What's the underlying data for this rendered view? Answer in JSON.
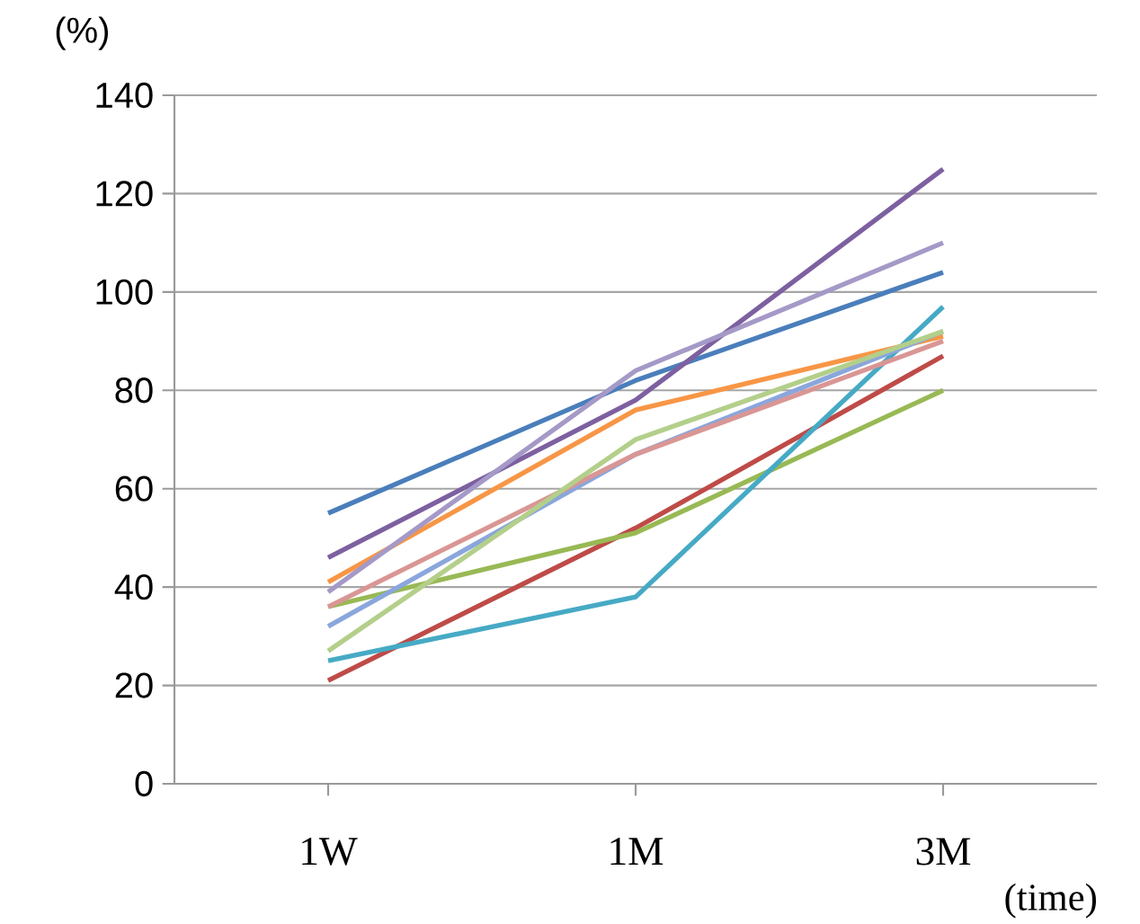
{
  "chart_data": {
    "type": "line",
    "ylabel": "(%)",
    "xlabel": "(time)",
    "categories": [
      "1W",
      "1M",
      "3M"
    ],
    "series": [
      {
        "color": "#4a7ebb",
        "values": [
          55,
          82,
          104
        ]
      },
      {
        "color": "#be4b48",
        "values": [
          21,
          52,
          87
        ]
      },
      {
        "color": "#98b954",
        "values": [
          36,
          51,
          80
        ]
      },
      {
        "color": "#7d60a0",
        "values": [
          46,
          78,
          125
        ]
      },
      {
        "color": "#46aac5",
        "values": [
          25,
          38,
          97
        ]
      },
      {
        "color": "#f79646",
        "values": [
          41,
          76,
          91
        ]
      },
      {
        "color": "#8aa6dc",
        "values": [
          32,
          67,
          92
        ]
      },
      {
        "color": "#d99694",
        "values": [
          36,
          67,
          90
        ]
      },
      {
        "color": "#b3cf8a",
        "values": [
          27,
          70,
          92
        ]
      },
      {
        "color": "#a599c7",
        "values": [
          39,
          84,
          110
        ]
      }
    ],
    "ylim": [
      0,
      140
    ],
    "yticks": [
      0,
      20,
      40,
      60,
      80,
      100,
      120,
      140
    ],
    "grid": "y",
    "marker": "none",
    "line_style": "solid"
  }
}
